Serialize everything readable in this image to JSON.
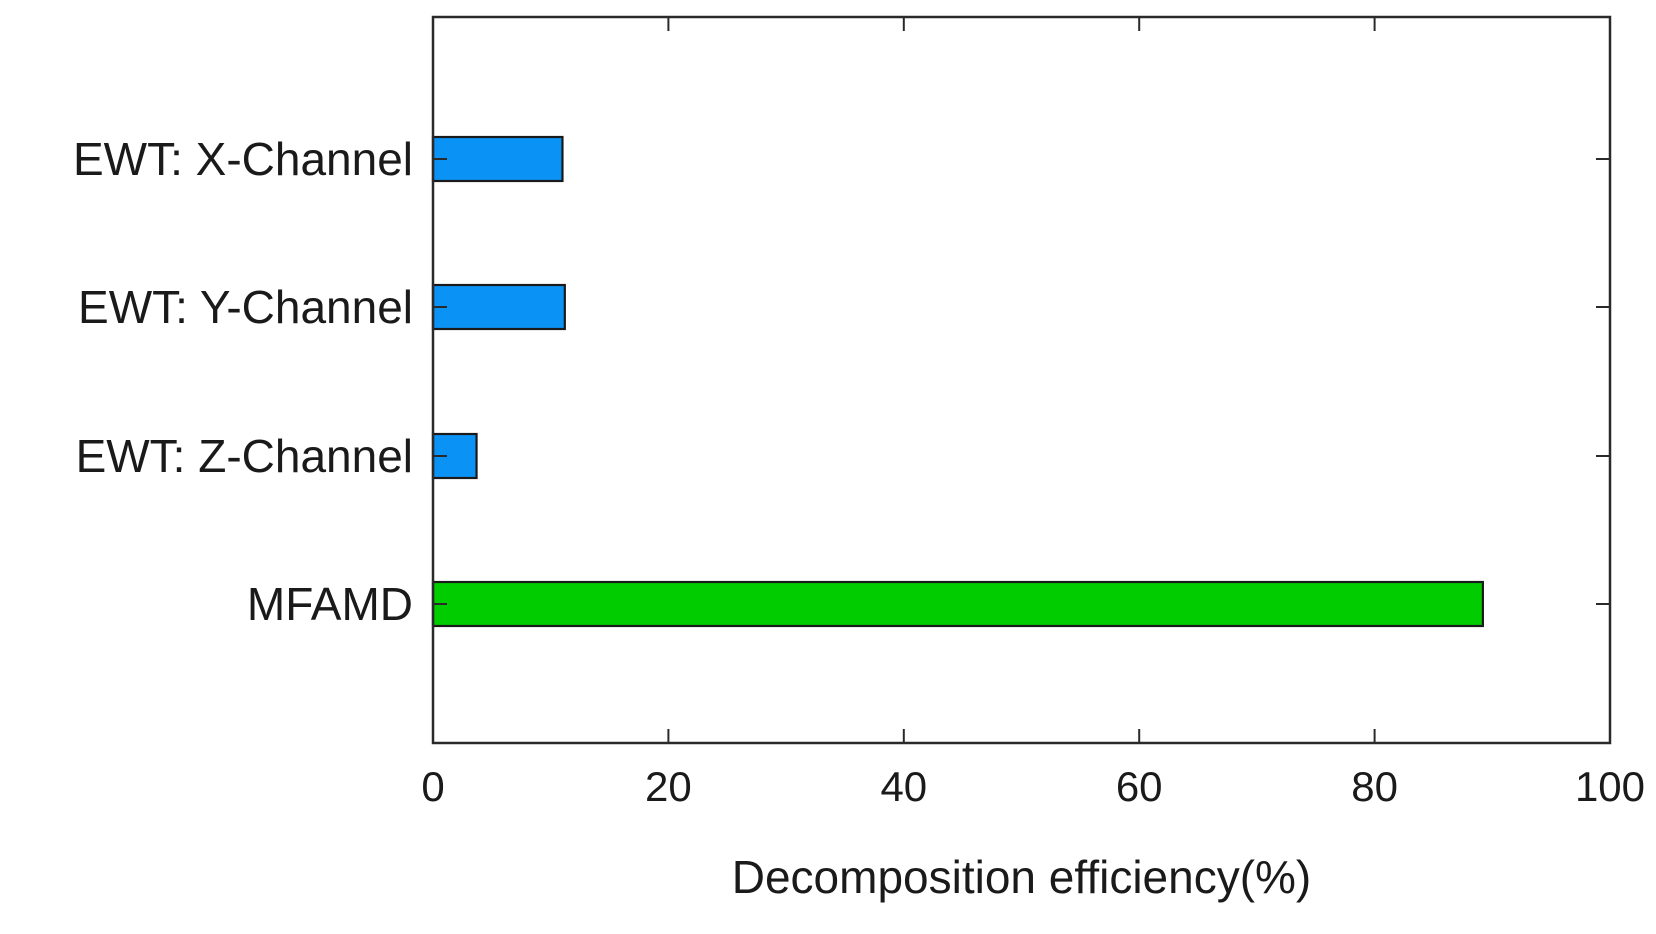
{
  "chart_data": {
    "type": "bar",
    "orientation": "horizontal",
    "categories": [
      "EWT: X-Channel",
      "EWT: Y-Channel",
      "EWT: Z-Channel",
      "MFAMD"
    ],
    "values": [
      11,
      11.2,
      3.7,
      89.2
    ],
    "bar_colors": [
      "#0a93f5",
      "#0a93f5",
      "#0a93f5",
      "#00cc00"
    ],
    "title": "",
    "xlabel": "Decomposition efficiency(%)",
    "ylabel": "",
    "xlim": [
      0,
      100
    ],
    "xticks": [
      0,
      20,
      40,
      60,
      80,
      100
    ],
    "xtick_labels": [
      "0",
      "20",
      "40",
      "60",
      "80",
      "100"
    ],
    "grid": false,
    "legend": "none"
  }
}
